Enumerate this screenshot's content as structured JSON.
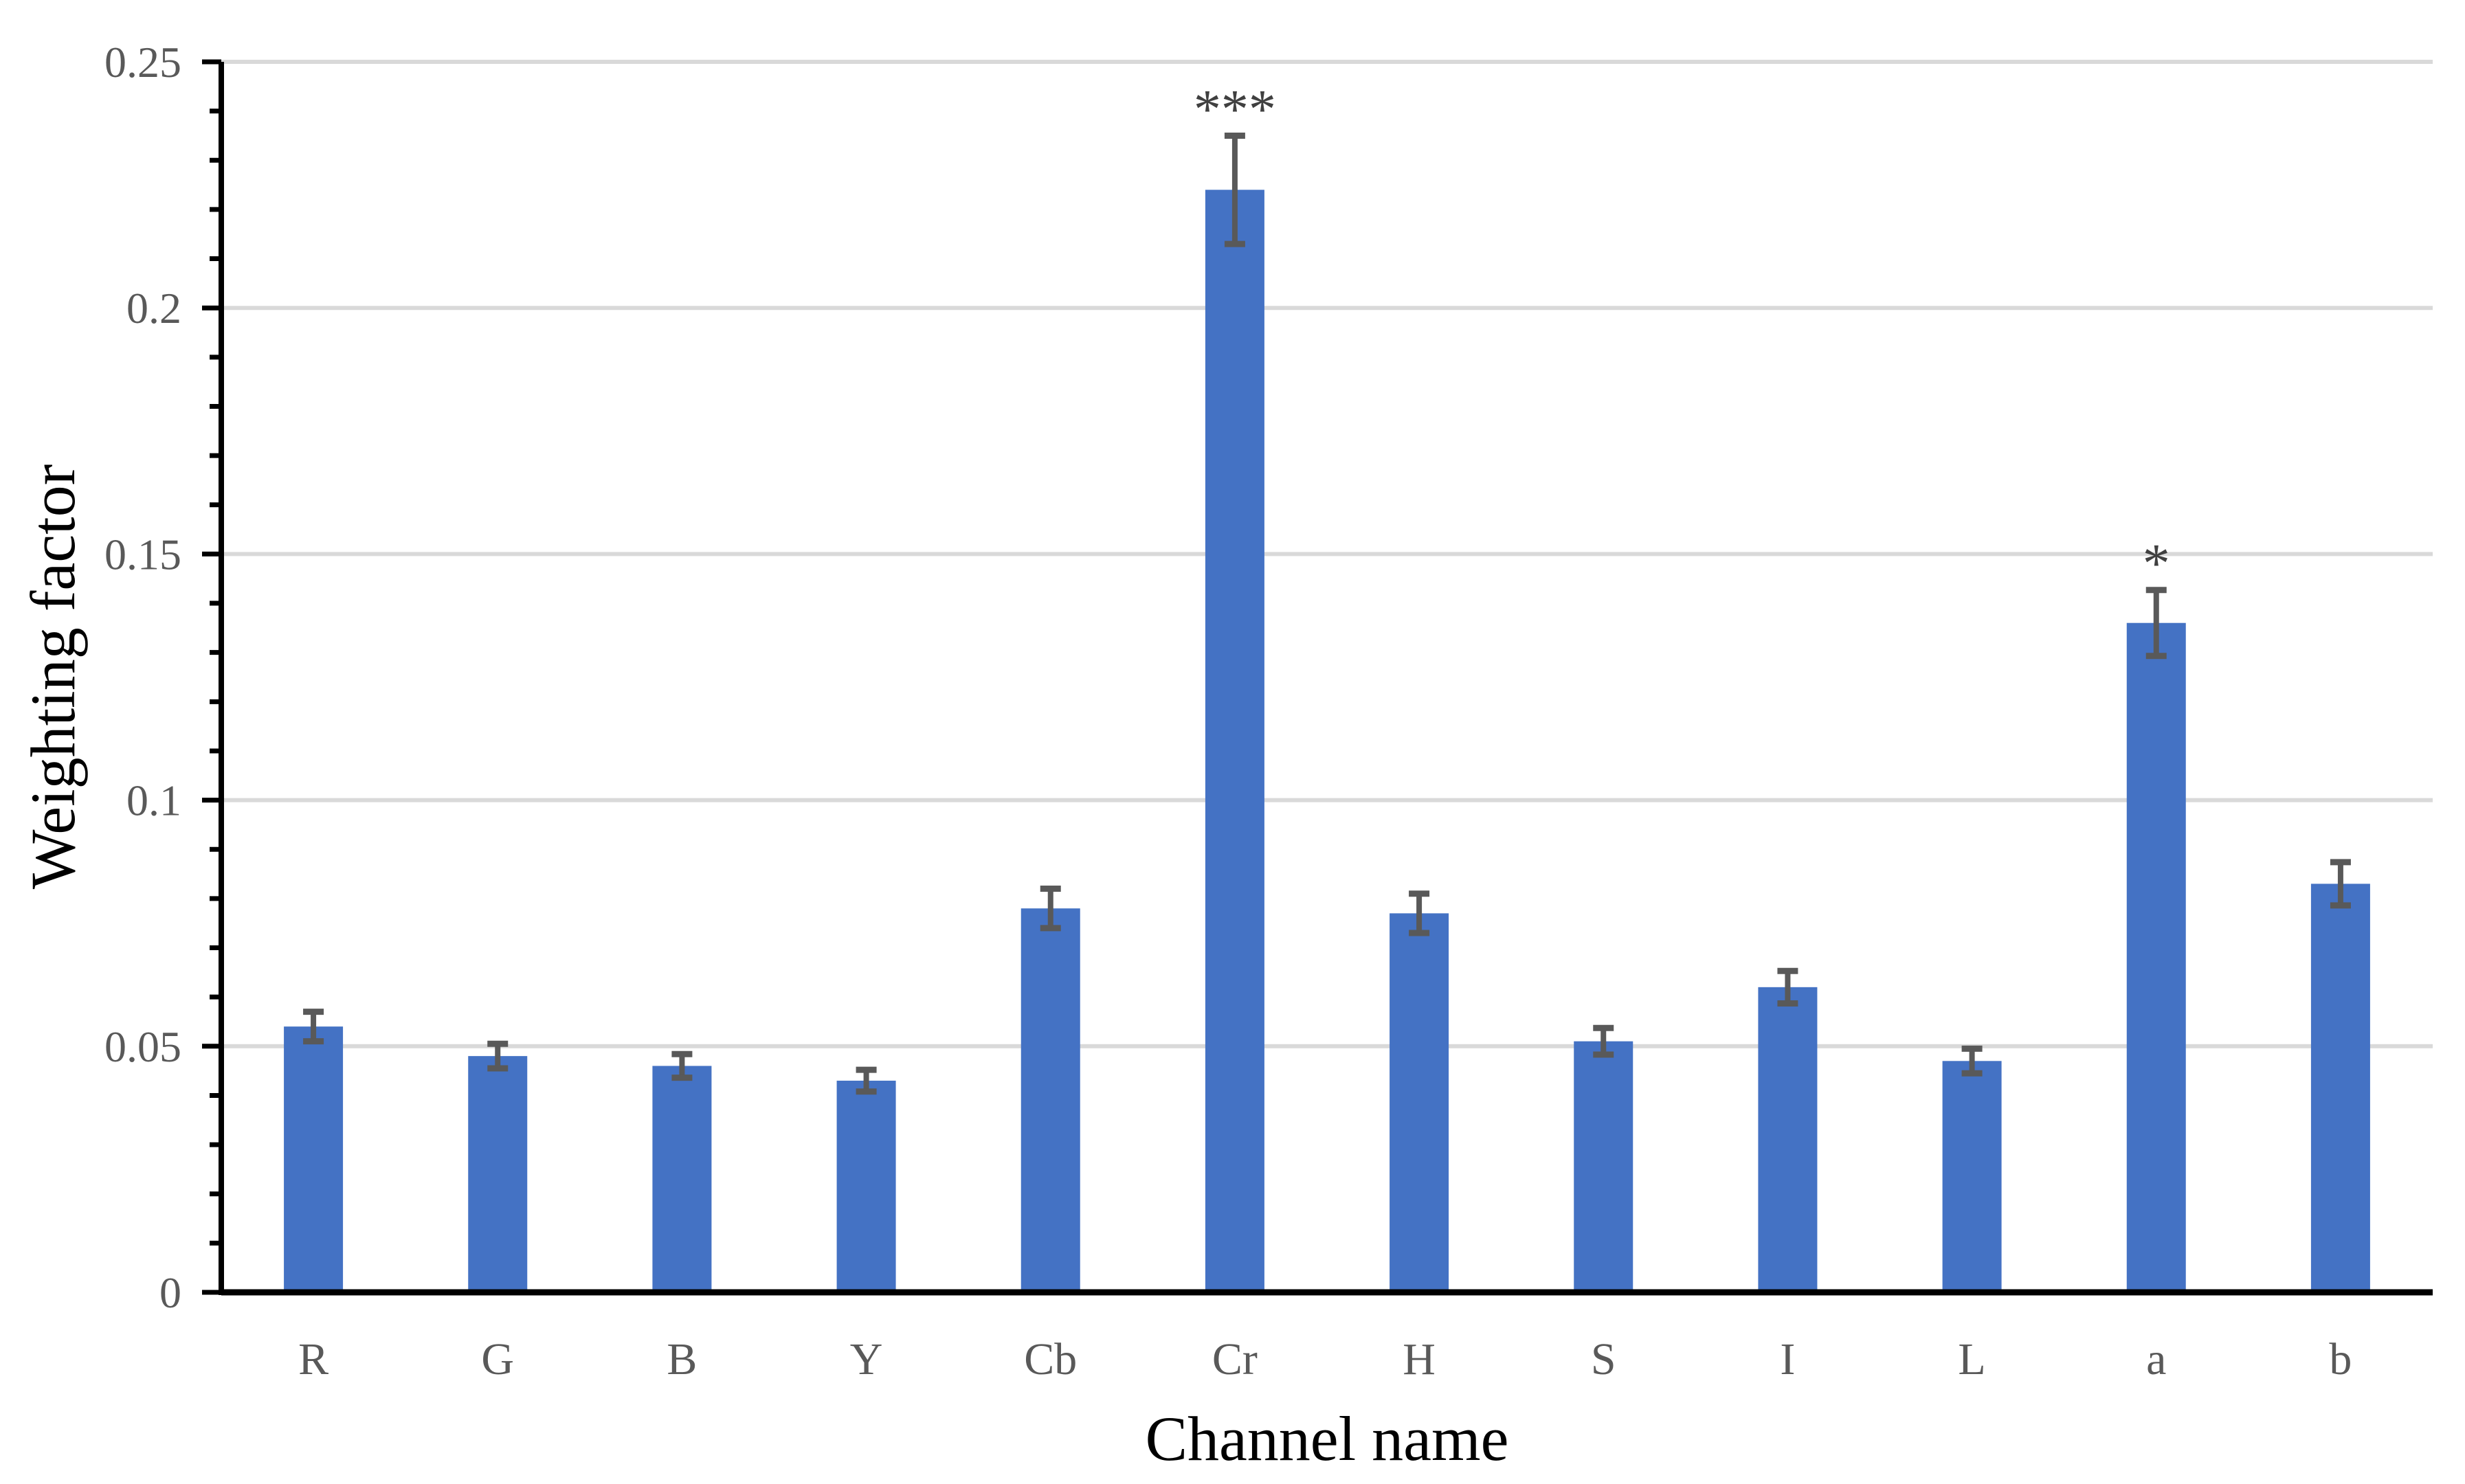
{
  "figure": {
    "background": "#ffffff"
  },
  "chart_data": {
    "type": "bar",
    "title": "",
    "xlabel": "Channel name",
    "ylabel": "Weighting factor",
    "categories": [
      "R",
      "G",
      "B",
      "Y",
      "Cb",
      "Cr",
      "H",
      "S",
      "I",
      "L",
      "a",
      "b"
    ],
    "values": [
      0.054,
      0.048,
      0.046,
      0.043,
      0.078,
      0.224,
      0.077,
      0.051,
      0.062,
      0.047,
      0.136,
      0.083
    ],
    "error_bars": [
      0.003,
      0.0025,
      0.0024,
      0.0022,
      0.004,
      0.011,
      0.004,
      0.0027,
      0.0033,
      0.0025,
      0.0067,
      0.0044
    ],
    "annotations": [
      {
        "category": "Cr",
        "text": "***"
      },
      {
        "category": "a",
        "text": "*"
      }
    ],
    "ylim": [
      0,
      0.25
    ],
    "ytick_values": [
      0,
      0.05,
      0.1,
      0.15,
      0.2,
      0.25
    ],
    "ytick_labels": [
      "0",
      "0.05",
      "0.1",
      "0.15",
      "0.2",
      "0.25"
    ],
    "minor_tick_step": 0.01,
    "grid": "horizontal-major-gridlines",
    "legend": "none",
    "colors": {
      "bar_fill": "#4472C4",
      "error_bar": "#595959",
      "gridline": "#D9D9D9",
      "axis_line": "#000000",
      "tick_label": "#595959",
      "axis_title": "#000000",
      "annotation": "#404040"
    }
  }
}
